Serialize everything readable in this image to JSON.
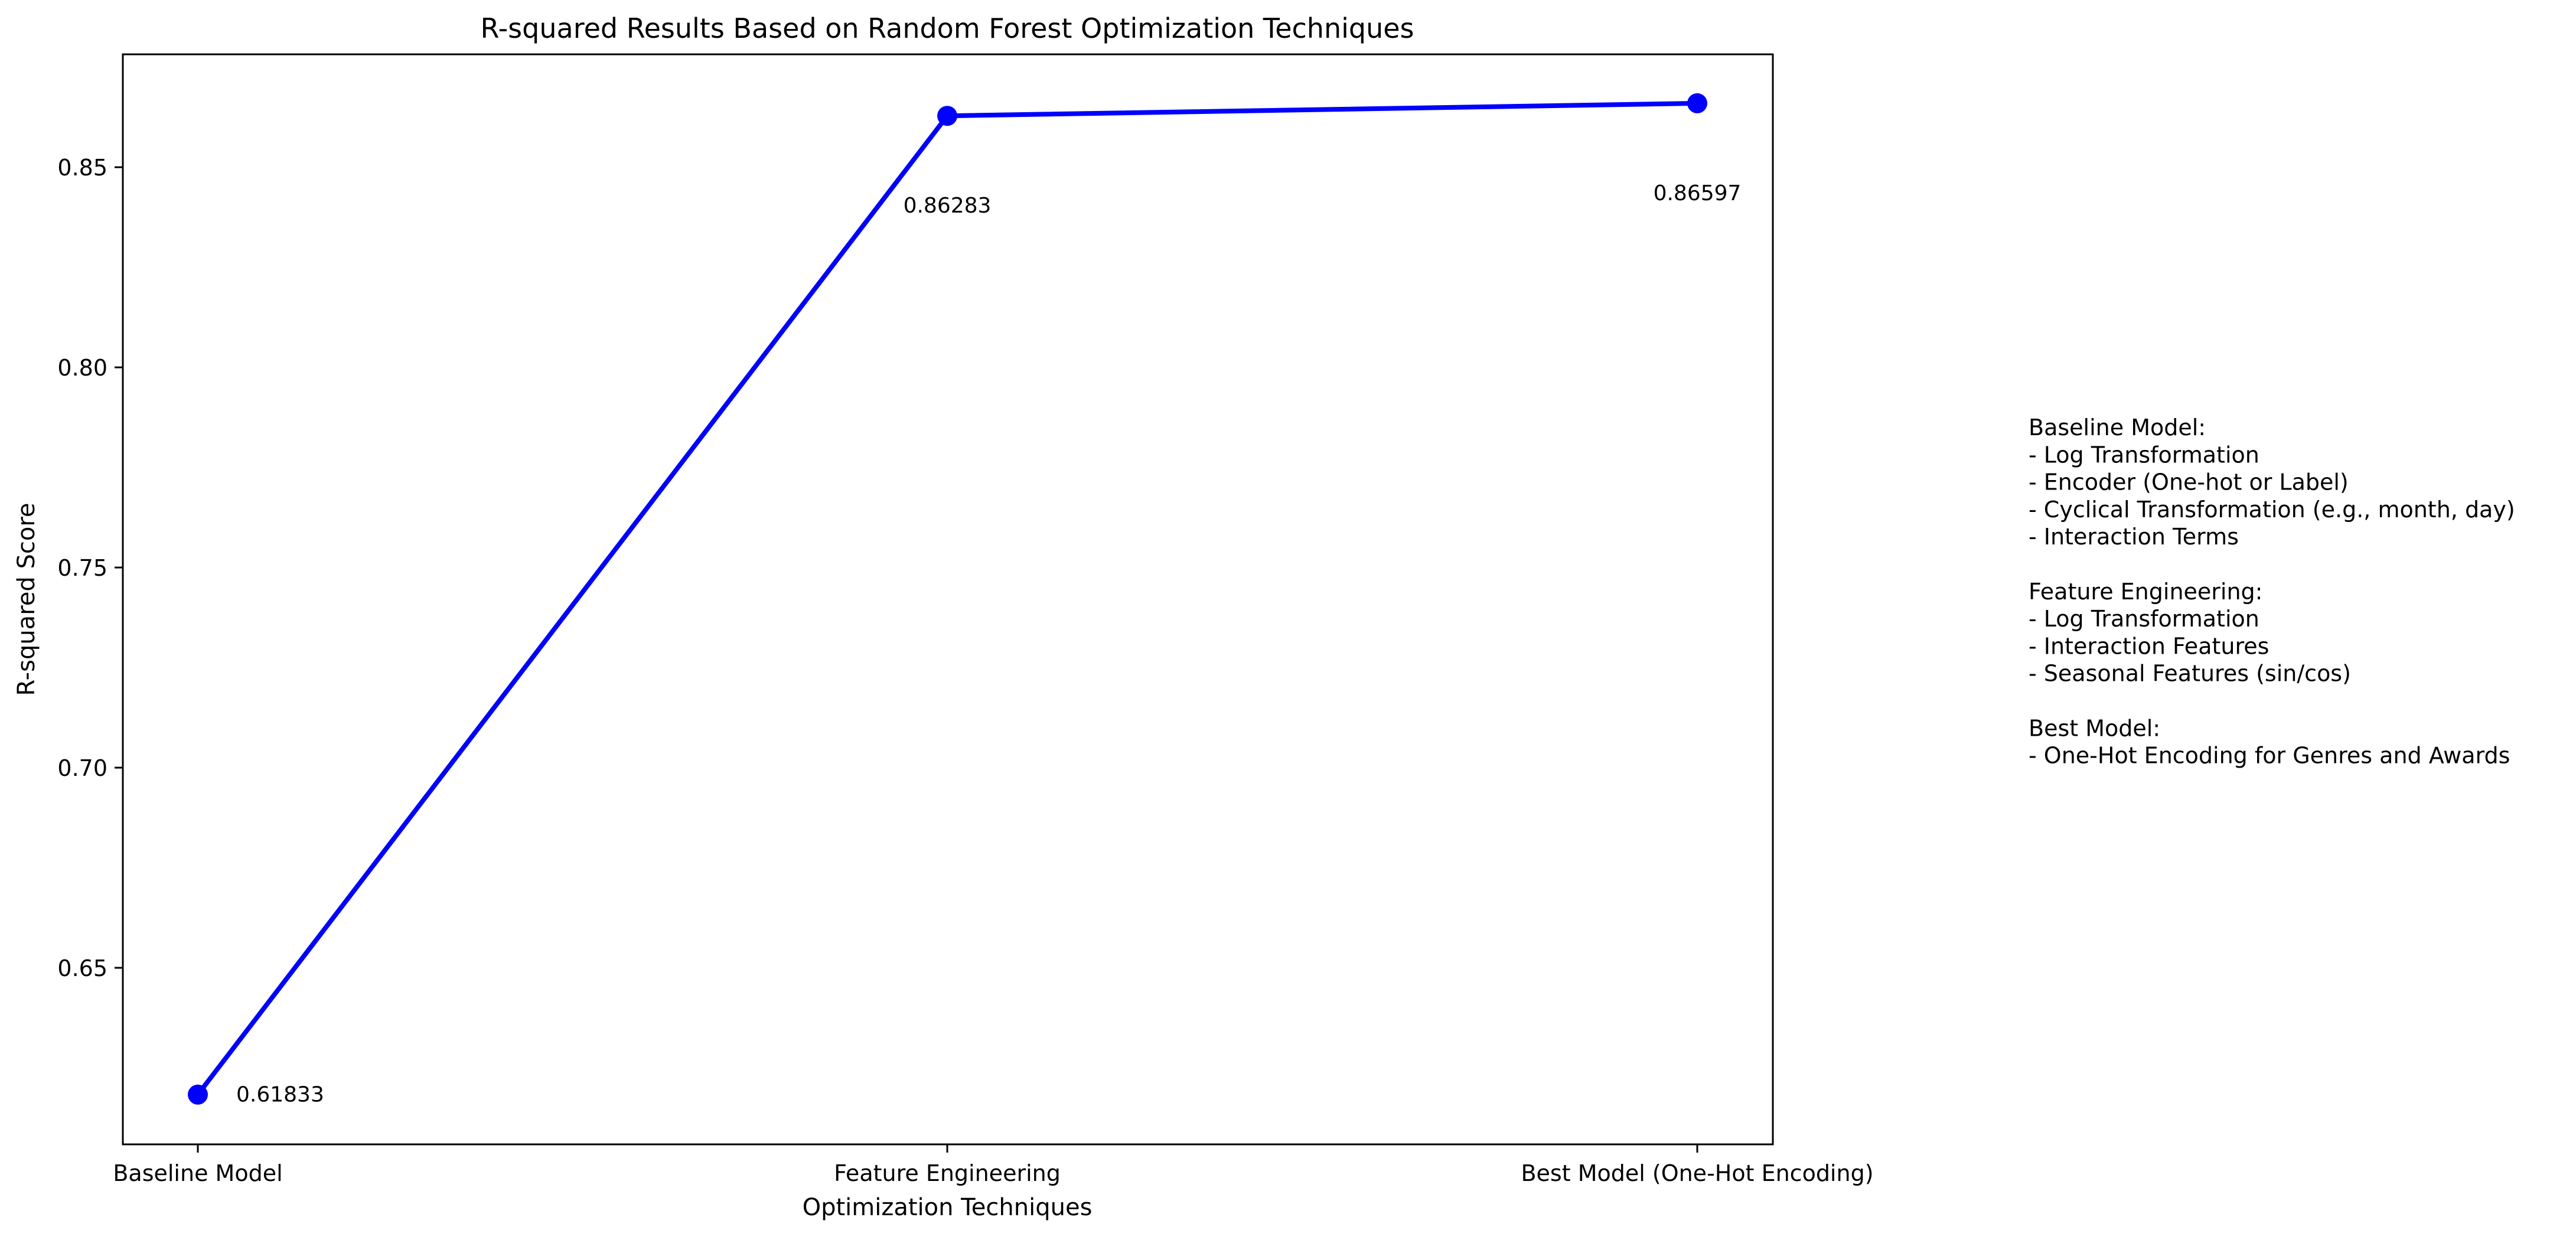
{
  "chart_data": {
    "type": "line",
    "title": "R-squared Results Based on Random Forest Optimization Techniques",
    "xlabel": "Optimization Techniques",
    "ylabel": "R-squared Score",
    "categories": [
      "Baseline Model",
      "Feature Engineering",
      "Best Model (One-Hot Encoding)"
    ],
    "series": [
      {
        "name": "R-squared Score",
        "values": [
          0.61833,
          0.86283,
          0.86597
        ],
        "labels": [
          "0.61833",
          "0.86283",
          "0.86597"
        ],
        "color": "#0000ff",
        "marker": "circle"
      }
    ],
    "ylim": [
      0.6059,
      0.8782
    ],
    "yticks": [
      0.65,
      0.7,
      0.75,
      0.8,
      0.85
    ],
    "ytick_labels": [
      "0.65",
      "0.70",
      "0.75",
      "0.80",
      "0.85"
    ],
    "grid": false,
    "annotation_lines": [
      "Baseline Model:",
      "- Log Transformation",
      "- Encoder (One-hot or Label)",
      "- Cyclical Transformation (e.g., month, day)",
      "- Interaction Terms",
      "",
      "Feature Engineering:",
      "- Log Transformation",
      "- Interaction Features",
      "- Seasonal Features (sin/cos)",
      "",
      "Best Model:",
      "- One-Hot Encoding for Genres and Awards"
    ]
  }
}
